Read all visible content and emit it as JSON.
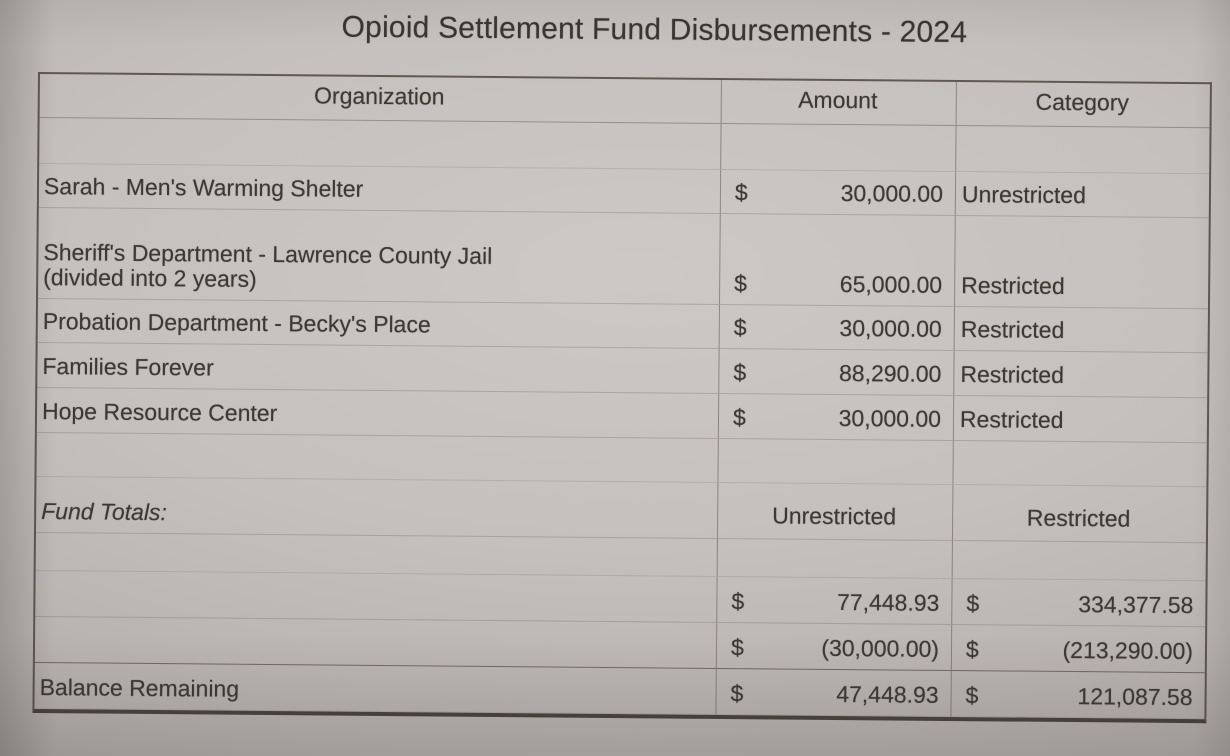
{
  "title": "Opioid Settlement Fund Disbursements - 2024",
  "currency_symbol": "$",
  "table": {
    "headers": {
      "organization": "Organization",
      "amount": "Amount",
      "category": "Category"
    },
    "rows": [
      {
        "organization": "Sarah - Men's Warming Shelter",
        "amount": "30,000.00",
        "category": "Unrestricted"
      },
      {
        "organization": "Sheriff's Department - Lawrence County Jail\n(divided into 2 years)",
        "amount": "65,000.00",
        "category": "Restricted"
      },
      {
        "organization": "Probation Department - Becky's Place",
        "amount": "30,000.00",
        "category": "Restricted"
      },
      {
        "organization": "Families Forever",
        "amount": "88,290.00",
        "category": "Restricted"
      },
      {
        "organization": "Hope Resource Center",
        "amount": "30,000.00",
        "category": "Restricted"
      }
    ],
    "totals": {
      "label": "Fund Totals:",
      "unrestricted_header": "Unrestricted",
      "restricted_header": "Restricted",
      "rows": [
        {
          "label": "",
          "unrestricted": "77,448.93",
          "restricted": "334,377.58"
        },
        {
          "label": "",
          "unrestricted": "(30,000.00)",
          "restricted": "(213,290.00)"
        },
        {
          "label": "Balance Remaining",
          "unrestricted": "47,448.93",
          "restricted": "121,087.58"
        }
      ]
    }
  }
}
